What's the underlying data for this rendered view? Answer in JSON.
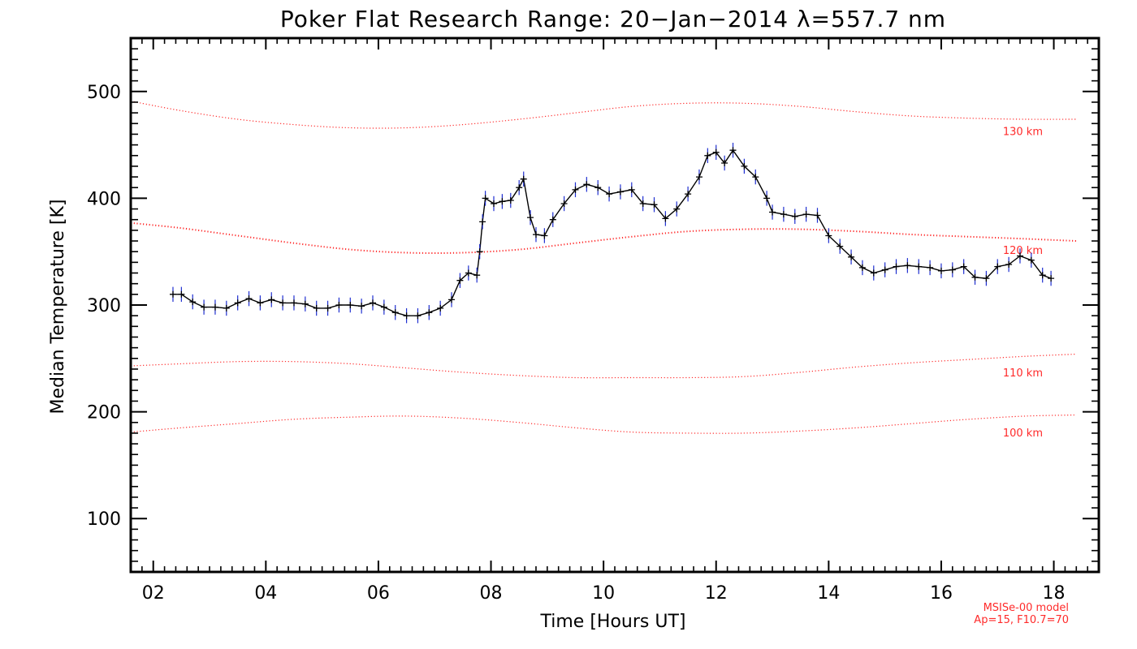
{
  "chart_data": {
    "type": "line",
    "title": "Poker Flat Research Range: 20−Jan−2014 λ=557.7 nm",
    "xlabel": "Time [Hours UT]",
    "ylabel": "Median Temperature [K]",
    "xlim": [
      1.6,
      18.8
    ],
    "ylim": [
      50,
      550
    ],
    "x_ticks": [
      "02",
      "04",
      "06",
      "08",
      "10",
      "12",
      "14",
      "16",
      "18"
    ],
    "x_tick_values": [
      2,
      4,
      6,
      8,
      10,
      12,
      14,
      16,
      18
    ],
    "y_ticks": [
      "100",
      "200",
      "300",
      "400",
      "500"
    ],
    "y_tick_values": [
      100,
      200,
      300,
      400,
      500
    ],
    "grid": false,
    "colors": {
      "data_line": "#000000",
      "error_bar": "#1f2fd0",
      "marker": "#000000",
      "model": "#ff2a2a"
    },
    "series": [
      {
        "x": [
          2.35,
          2.5,
          2.7,
          2.9,
          3.1,
          3.3,
          3.5,
          3.7,
          3.9,
          4.1,
          4.3,
          4.5,
          4.7,
          4.9,
          5.1,
          5.3,
          5.5,
          5.7,
          5.9,
          6.1,
          6.3,
          6.5,
          6.7,
          6.9,
          7.1,
          7.3,
          7.45,
          7.6,
          7.75,
          7.8,
          7.85,
          7.9,
          8.05,
          8.2,
          8.35,
          8.5,
          8.58,
          8.7,
          8.8,
          8.95,
          9.1,
          9.3,
          9.5,
          9.7,
          9.9,
          10.1,
          10.3,
          10.5,
          10.7,
          10.9,
          11.1,
          11.3,
          11.5,
          11.7,
          11.85,
          12.0,
          12.15,
          12.3,
          12.5,
          12.7,
          12.9,
          13.0,
          13.2,
          13.4,
          13.6,
          13.8,
          14.0,
          14.2,
          14.4,
          14.6,
          14.8,
          15.0,
          15.2,
          15.4,
          15.6,
          15.8,
          16.0,
          16.2,
          16.4,
          16.6,
          16.8,
          17.0,
          17.2,
          17.4,
          17.6,
          17.8,
          17.95
        ],
        "y": [
          310,
          310,
          303,
          298,
          298,
          297,
          302,
          306,
          302,
          305,
          302,
          302,
          301,
          297,
          297,
          300,
          300,
          299,
          302,
          298,
          293,
          290,
          290,
          293,
          297,
          305,
          323,
          330,
          328,
          350,
          378,
          400,
          395,
          397,
          398,
          410,
          418,
          382,
          366,
          365,
          380,
          395,
          408,
          413,
          410,
          404,
          406,
          408,
          395,
          394,
          381,
          390,
          404,
          420,
          440,
          443,
          433,
          445,
          430,
          420,
          400,
          387,
          385,
          383,
          385,
          384,
          365,
          355,
          345,
          335,
          330,
          333,
          336,
          337,
          336,
          335,
          332,
          333,
          336,
          326,
          325,
          336,
          338,
          346,
          342,
          328,
          325
        ],
        "error": 7
      }
    ],
    "model": {
      "name": "MSISe-00 model",
      "params": "Ap=15, F10.7=70",
      "x": [
        1.6,
        2.5,
        3.5,
        4.5,
        5.5,
        6.5,
        7.5,
        8.5,
        9.5,
        10.5,
        11.5,
        12.5,
        13.5,
        14.5,
        15.5,
        16.5,
        17.5,
        18.4
      ],
      "lines": [
        {
          "label": "130 km",
          "values": [
            491,
            482,
            474,
            469,
            466,
            466,
            469,
            474,
            480,
            486,
            489,
            489,
            486,
            481,
            477,
            475,
            474,
            474
          ]
        },
        {
          "label": "120 km",
          "values": [
            377,
            372,
            365,
            358,
            352,
            349,
            349,
            352,
            358,
            364,
            369,
            371,
            371,
            369,
            366,
            364,
            362,
            360
          ]
        },
        {
          "label": "110 km",
          "values": [
            243,
            245,
            247,
            247,
            245,
            241,
            237,
            234,
            232,
            232,
            232,
            233,
            237,
            242,
            246,
            249,
            252,
            254
          ]
        },
        {
          "label": "100 km",
          "values": [
            181,
            185,
            189,
            193,
            195,
            196,
            194,
            190,
            185,
            181,
            180,
            180,
            182,
            185,
            189,
            193,
            196,
            197
          ]
        }
      ]
    }
  }
}
